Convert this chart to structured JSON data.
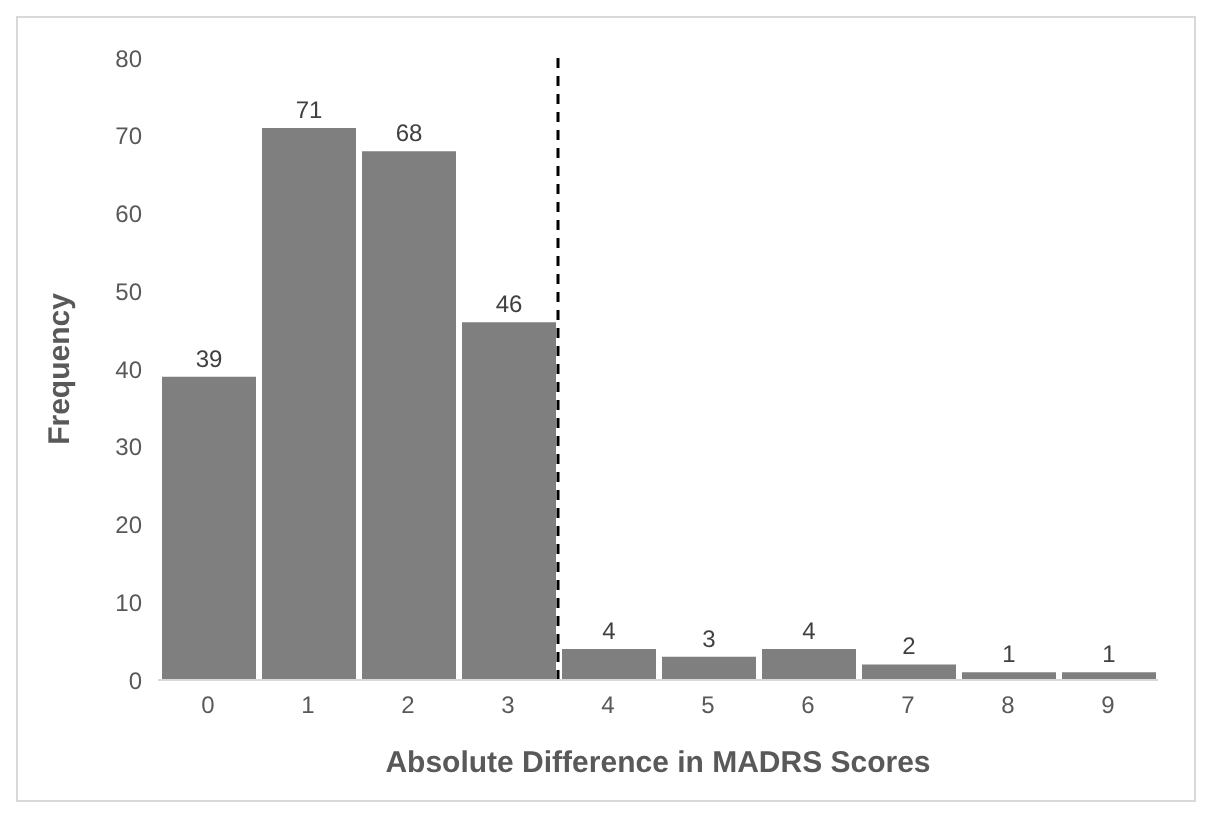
{
  "chart_data": {
    "type": "histogram",
    "xlabel": "Absolute Difference in MADRS Scores",
    "ylabel": "Frequency",
    "bins": [
      -0.5,
      0.5,
      1.5,
      2.5,
      3.5,
      4.5,
      5.5,
      6.5,
      7.5,
      8.5,
      9.5
    ],
    "values": [
      39,
      71,
      68,
      46,
      4,
      3,
      4,
      2,
      1,
      1
    ],
    "color": "#7f7f7f",
    "xlim": [
      -0.5,
      9.5
    ],
    "xticks": [
      0,
      1,
      2,
      3,
      4,
      5,
      6,
      7,
      8,
      9
    ],
    "ylim": [
      0,
      80
    ],
    "yticks": [
      0,
      10,
      20,
      30,
      40,
      50,
      60,
      70,
      80
    ],
    "ref_lines": [
      {
        "axis": "x",
        "value": 3.5,
        "color": "#000000",
        "line_style": "dashed"
      }
    ],
    "data_labels": true,
    "grid": false
  }
}
